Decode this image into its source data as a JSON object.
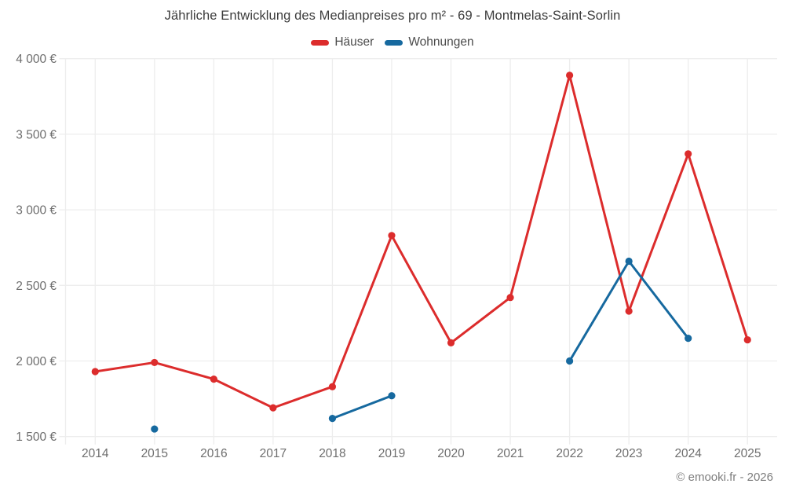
{
  "title": "Jährliche Entwicklung des Medianpreises pro m² - 69 - Montmelas-Saint-Sorlin",
  "footer": "© emooki.fr - 2026",
  "legend": {
    "items": [
      {
        "label": "Häuser",
        "color": "#dc2c2c"
      },
      {
        "label": "Wohnungen",
        "color": "#16699f"
      }
    ]
  },
  "chart_data": {
    "type": "line",
    "title": "Jährliche Entwicklung des Medianpreises pro m² - 69 - Montmelas-Saint-Sorlin",
    "categories": [
      "2014",
      "2015",
      "2016",
      "2017",
      "2018",
      "2019",
      "2020",
      "2021",
      "2022",
      "2023",
      "2024",
      "2025"
    ],
    "series": [
      {
        "name": "Häuser",
        "color": "#dc2c2c",
        "values": [
          1930,
          1990,
          1880,
          1690,
          1830,
          2830,
          2120,
          2420,
          3890,
          2330,
          3370,
          2140
        ]
      },
      {
        "name": "Wohnungen",
        "color": "#16699f",
        "values": [
          null,
          1550,
          null,
          null,
          1620,
          1770,
          null,
          null,
          2000,
          2660,
          2150,
          null
        ]
      }
    ],
    "ylim": [
      1500,
      4000
    ],
    "yticks": [
      {
        "value": 1500,
        "label": "1 500 €"
      },
      {
        "value": 2000,
        "label": "2 000 €"
      },
      {
        "value": 2500,
        "label": "2 500 €"
      },
      {
        "value": 3000,
        "label": "3 000 €"
      },
      {
        "value": 3500,
        "label": "3 500 €"
      },
      {
        "value": 4000,
        "label": "4 000 €"
      }
    ],
    "grid": true,
    "legend_position": "top",
    "ylabel": "",
    "xlabel": ""
  }
}
